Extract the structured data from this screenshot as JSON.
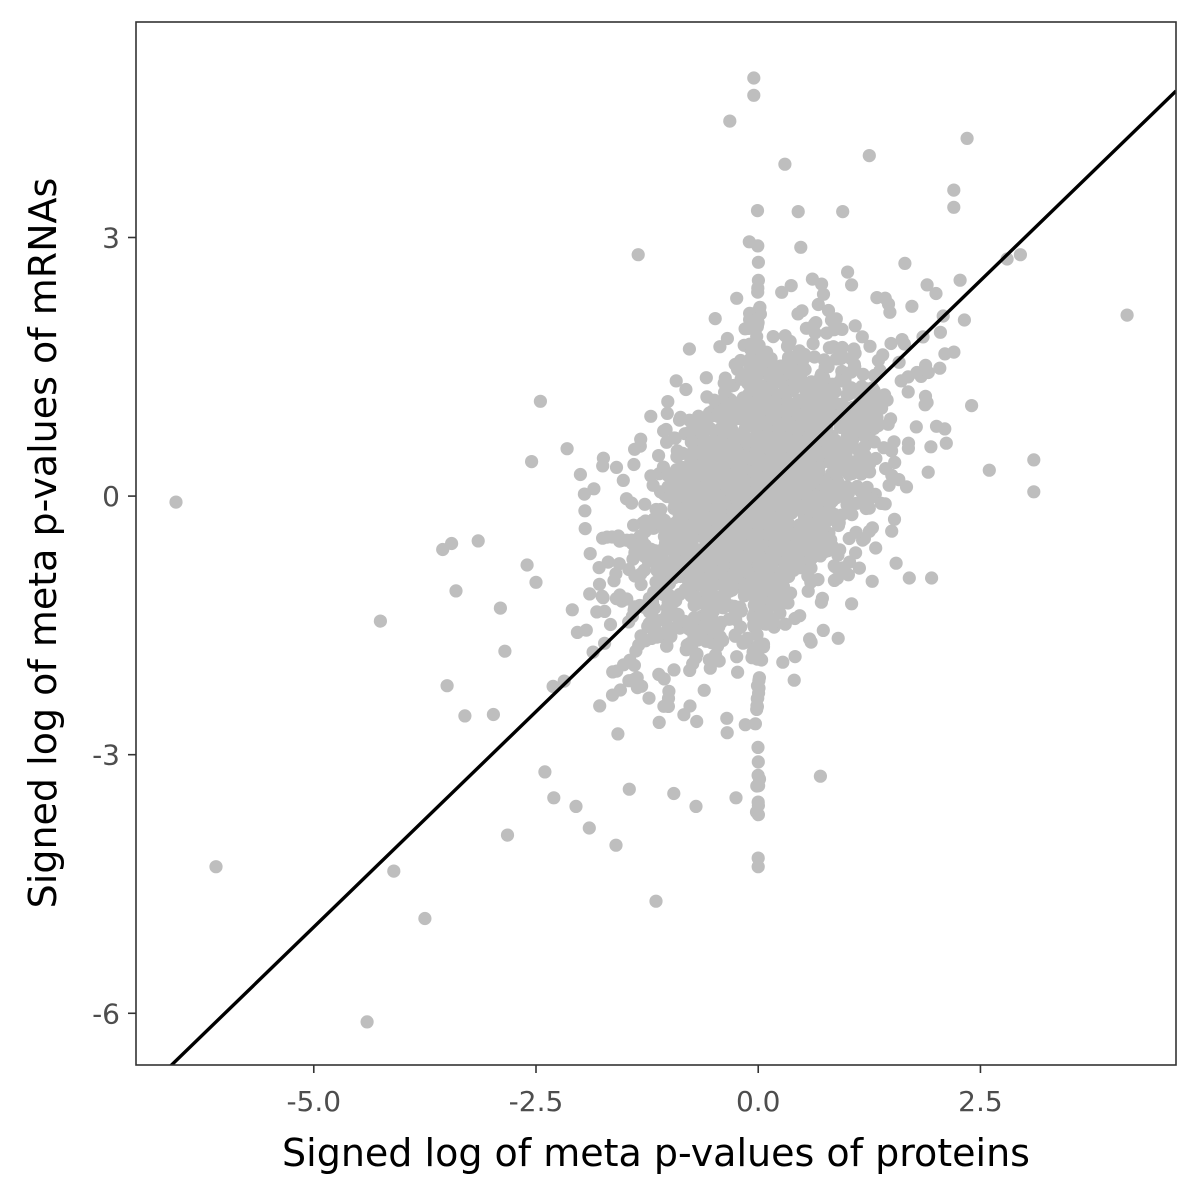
{
  "chart_data": {
    "type": "scatter",
    "title": "",
    "xlabel": "Signed log of meta p-values of proteins",
    "ylabel": "Signed log of meta p-values of mRNAs",
    "xlim": [
      -7.0,
      4.7
    ],
    "ylim": [
      -6.6,
      5.5
    ],
    "x_ticks": [
      -5.0,
      -2.5,
      0.0,
      2.5
    ],
    "x_tick_labels": [
      "-5.0",
      "-2.5",
      "0.0",
      "2.5"
    ],
    "y_ticks": [
      -6,
      -3,
      0,
      3
    ],
    "y_tick_labels": [
      "-6",
      "-3",
      "0",
      "3"
    ],
    "grid": false,
    "legend": "none",
    "point_color": "#bebebe",
    "line_color": "#000000",
    "fit_line": {
      "slope": 1.0,
      "intercept": 0.0
    },
    "points_visible": [
      [
        -6.55,
        -0.07
      ],
      [
        -6.1,
        -4.3
      ],
      [
        -4.4,
        -6.1
      ],
      [
        -4.25,
        -1.45
      ],
      [
        -4.1,
        -4.35
      ],
      [
        -3.75,
        -4.9
      ],
      [
        -3.55,
        -0.62
      ],
      [
        -3.5,
        -2.2
      ],
      [
        -3.45,
        -0.55
      ],
      [
        -3.4,
        -1.1
      ],
      [
        -3.3,
        -2.55
      ],
      [
        -3.15,
        -0.52
      ],
      [
        -2.9,
        -1.3
      ],
      [
        -2.85,
        -1.8
      ],
      [
        -2.6,
        -0.8
      ],
      [
        -2.55,
        0.4
      ],
      [
        -2.5,
        -1.0
      ],
      [
        -2.45,
        1.1
      ],
      [
        -2.4,
        -3.2
      ],
      [
        -2.3,
        -3.5
      ],
      [
        -2.05,
        -3.6
      ],
      [
        -1.9,
        -3.85
      ],
      [
        -1.6,
        -4.05
      ],
      [
        -1.45,
        -3.4
      ],
      [
        -1.35,
        2.8
      ],
      [
        -1.15,
        -4.7
      ],
      [
        -0.95,
        -3.45
      ],
      [
        -0.7,
        -3.6
      ],
      [
        -0.32,
        4.35
      ],
      [
        -0.05,
        4.85
      ],
      [
        -0.05,
        4.65
      ],
      [
        0.0,
        -4.2
      ],
      [
        0.0,
        -4.3
      ],
      [
        0.0,
        -3.55
      ],
      [
        -0.25,
        -3.5
      ],
      [
        0.3,
        3.85
      ],
      [
        0.7,
        -3.25
      ],
      [
        1.25,
        3.95
      ],
      [
        2.35,
        4.15
      ],
      [
        2.2,
        3.55
      ],
      [
        2.2,
        3.35
      ],
      [
        2.8,
        2.75
      ],
      [
        2.95,
        2.8
      ],
      [
        3.1,
        0.42
      ],
      [
        3.1,
        0.05
      ],
      [
        4.15,
        2.1
      ],
      [
        2.6,
        0.3
      ],
      [
        2.4,
        1.05
      ],
      [
        2.1,
        1.65
      ],
      [
        2.05,
        1.9
      ],
      [
        1.95,
        -0.95
      ],
      [
        1.7,
        -0.95
      ],
      [
        0.9,
        -1.65
      ],
      [
        1.05,
        -1.25
      ],
      [
        -1.55,
        -2.25
      ],
      [
        -1.75,
        0.35
      ],
      [
        -2.0,
        0.25
      ],
      [
        -2.15,
        0.55
      ],
      [
        -0.1,
        2.95
      ],
      [
        0.45,
        3.3
      ],
      [
        0.95,
        3.3
      ],
      [
        1.05,
        2.45
      ],
      [
        1.65,
        2.7
      ],
      [
        1.9,
        2.45
      ],
      [
        2.0,
        2.35
      ]
    ]
  }
}
